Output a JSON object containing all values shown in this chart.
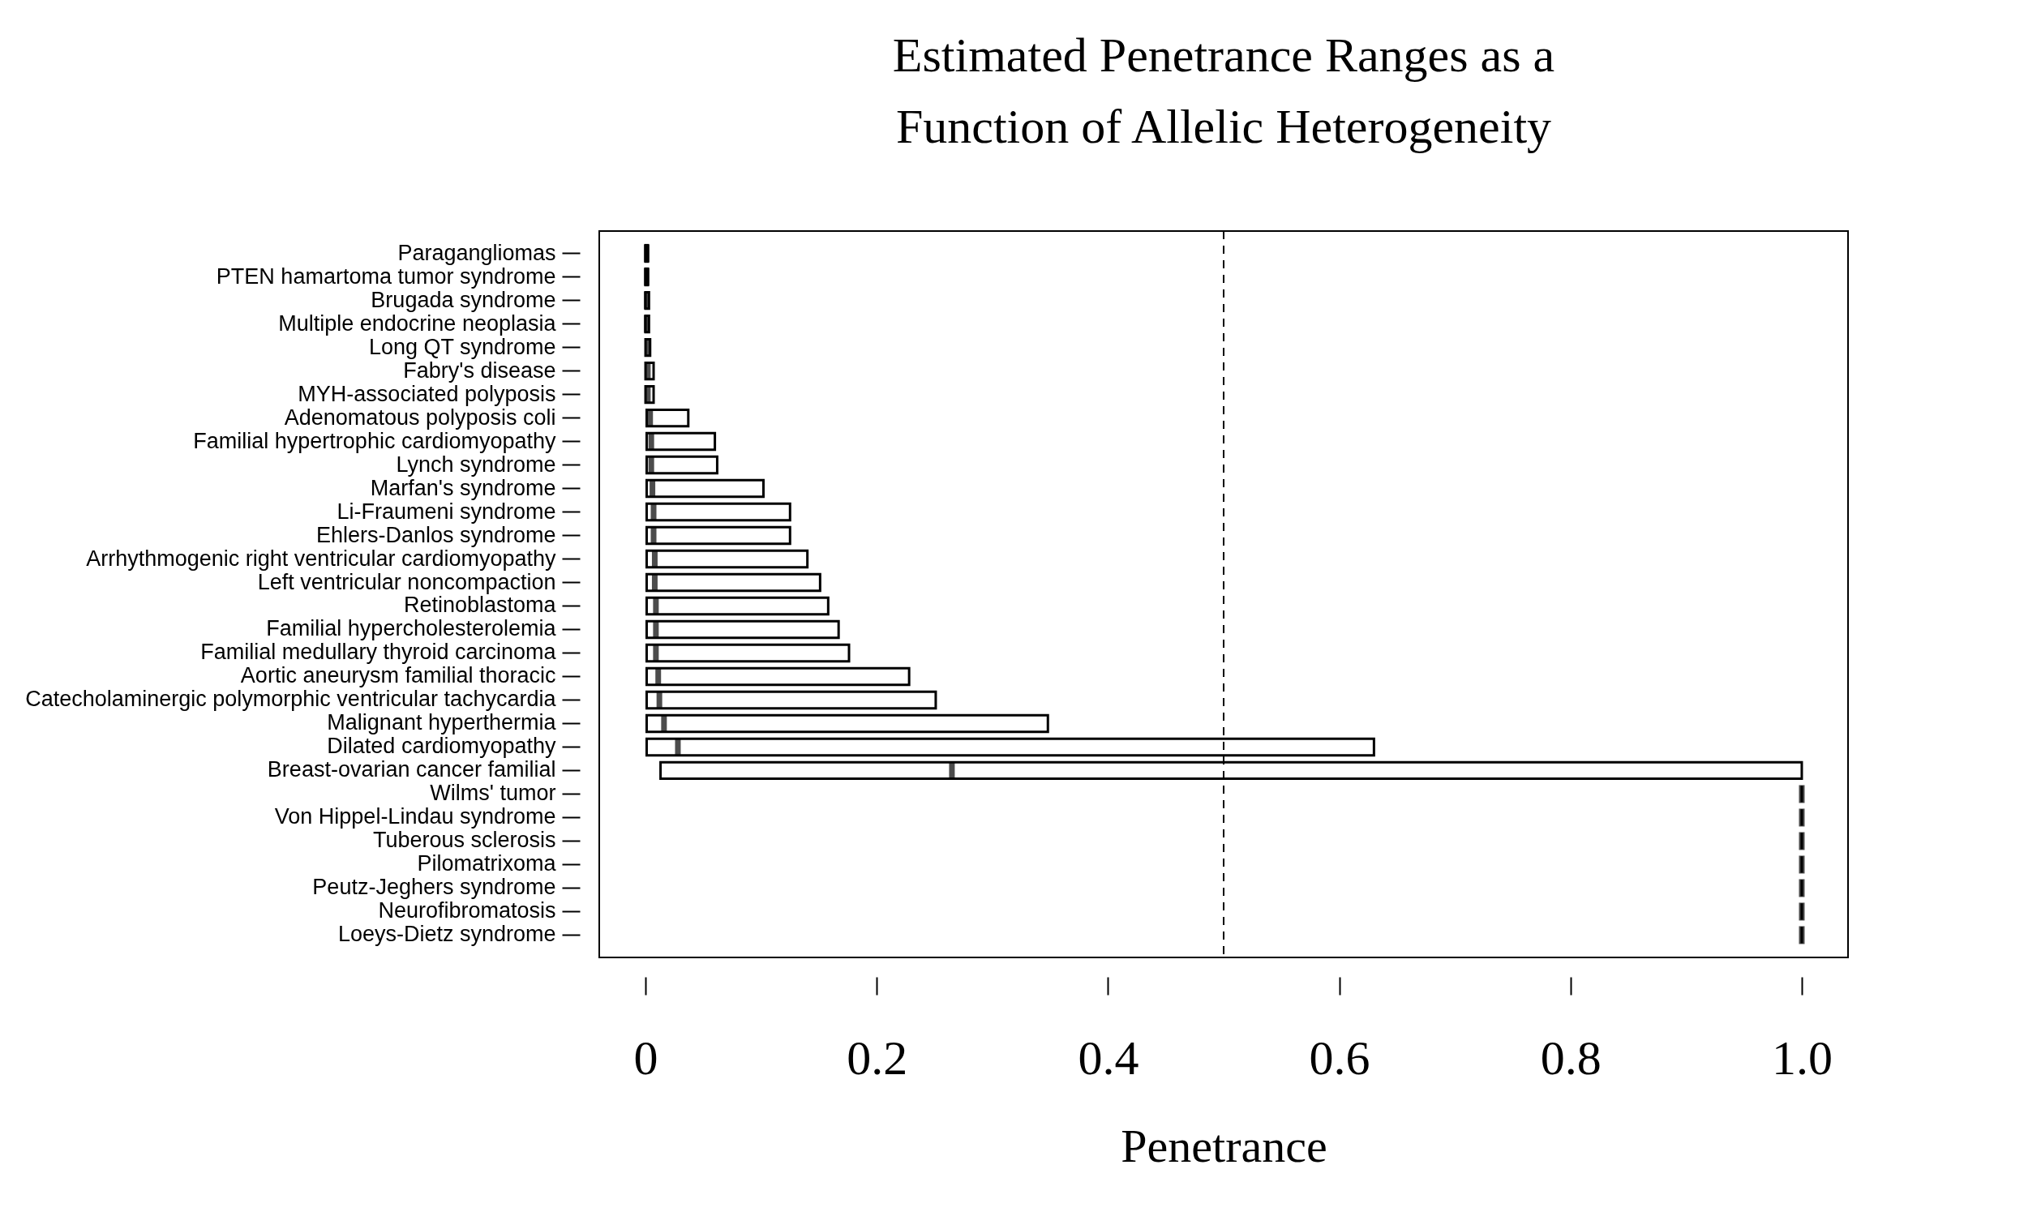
{
  "chart_data": {
    "type": "box",
    "orientation": "horizontal",
    "title": "Estimated Penetrance Ranges as a Function of Allelic Heterogeneity",
    "xlabel": "Penetrance",
    "categories": [
      "Paragangliomas",
      "PTEN hamartoma tumor syndrome",
      "Brugada syndrome",
      "Multiple endocrine neoplasia",
      "Long QT syndrome",
      "Fabry's disease",
      "MYH-associated polyposis",
      "Adenomatous polyposis coli",
      "Familial hypertrophic cardiomyopathy",
      "Lynch syndrome",
      "Marfan's syndrome",
      "Li-Fraumeni syndrome",
      "Ehlers-Danlos syndrome",
      "Arrhythmogenic right ventricular cardiomyopathy",
      "Left ventricular noncompaction",
      "Retinoblastoma",
      "Familial hypercholesterolemia",
      "Familial medullary thyroid carcinoma",
      "Aortic aneurysm familial thoracic",
      "Catecholaminergic polymorphic ventricular tachycardia",
      "Malignant hyperthermia",
      "Dilated cardiomyopathy",
      "Breast-ovarian cancer familial",
      "Wilms' tumor",
      "Von Hippel-Lindau syndrome",
      "Tuberous sclerosis",
      "Pilomatrixoma",
      "Peutz-Jeghers syndrome",
      "Neurofibromatosis",
      "Loeys-Dietz syndrome"
    ],
    "boxes": [
      {
        "low": 0,
        "q1": 0,
        "median": 0.001,
        "q3": 0.002,
        "high": 0.002
      },
      {
        "low": 0,
        "q1": 0,
        "median": 0.001,
        "q3": 0.002,
        "high": 0.002
      },
      {
        "low": 0,
        "q1": 0,
        "median": 0.001,
        "q3": 0.003,
        "high": 0.003
      },
      {
        "low": 0,
        "q1": 0,
        "median": 0.001,
        "q3": 0.003,
        "high": 0.003
      },
      {
        "low": 0,
        "q1": 0,
        "median": 0.002,
        "q3": 0.004,
        "high": 0.004
      },
      {
        "low": 0,
        "q1": 0,
        "median": 0.002,
        "q3": 0.007,
        "high": 0.007
      },
      {
        "low": 0,
        "q1": 0,
        "median": 0.002,
        "q3": 0.007,
        "high": 0.007
      },
      {
        "low": 0.001,
        "q1": 0.001,
        "median": 0.004,
        "q3": 0.037,
        "high": 0.037
      },
      {
        "low": 0.001,
        "q1": 0.001,
        "median": 0.005,
        "q3": 0.06,
        "high": 0.06
      },
      {
        "low": 0.001,
        "q1": 0.001,
        "median": 0.005,
        "q3": 0.062,
        "high": 0.062
      },
      {
        "low": 0.001,
        "q1": 0.001,
        "median": 0.006,
        "q3": 0.102,
        "high": 0.102
      },
      {
        "low": 0.001,
        "q1": 0.001,
        "median": 0.007,
        "q3": 0.125,
        "high": 0.125
      },
      {
        "low": 0.001,
        "q1": 0.001,
        "median": 0.007,
        "q3": 0.125,
        "high": 0.125
      },
      {
        "low": 0.001,
        "q1": 0.001,
        "median": 0.008,
        "q3": 0.14,
        "high": 0.14
      },
      {
        "low": 0.001,
        "q1": 0.001,
        "median": 0.008,
        "q3": 0.151,
        "high": 0.151
      },
      {
        "low": 0.001,
        "q1": 0.001,
        "median": 0.009,
        "q3": 0.158,
        "high": 0.158
      },
      {
        "low": 0.001,
        "q1": 0.001,
        "median": 0.009,
        "q3": 0.167,
        "high": 0.167
      },
      {
        "low": 0.001,
        "q1": 0.001,
        "median": 0.009,
        "q3": 0.176,
        "high": 0.176
      },
      {
        "low": 0.001,
        "q1": 0.001,
        "median": 0.011,
        "q3": 0.228,
        "high": 0.228
      },
      {
        "low": 0.001,
        "q1": 0.001,
        "median": 0.012,
        "q3": 0.251,
        "high": 0.251
      },
      {
        "low": 0.001,
        "q1": 0.001,
        "median": 0.016,
        "q3": 0.348,
        "high": 0.348
      },
      {
        "low": 0.001,
        "q1": 0.001,
        "median": 0.028,
        "q3": 0.63,
        "high": 0.63
      },
      {
        "low": 0.013,
        "q1": 0.013,
        "median": 0.265,
        "q3": 1,
        "high": 1
      },
      {
        "low": 1,
        "q1": 1,
        "median": 1,
        "q3": 1,
        "high": 1
      },
      {
        "low": 1,
        "q1": 1,
        "median": 1,
        "q3": 1,
        "high": 1
      },
      {
        "low": 1,
        "q1": 1,
        "median": 1,
        "q3": 1,
        "high": 1
      },
      {
        "low": 1,
        "q1": 1,
        "median": 1,
        "q3": 1,
        "high": 1
      },
      {
        "low": 1,
        "q1": 1,
        "median": 1,
        "q3": 1,
        "high": 1
      },
      {
        "low": 1,
        "q1": 1,
        "median": 1,
        "q3": 1,
        "high": 1
      },
      {
        "low": 1,
        "q1": 1,
        "median": 1,
        "q3": 1,
        "high": 1
      }
    ],
    "xlim": [
      -0.04,
      1.04
    ],
    "xticks": [
      0,
      0.2,
      0.4,
      0.6,
      0.8,
      {
        "value": 1,
        "label": "1.0"
      }
    ],
    "ref_lines": [
      {
        "axis": "x",
        "value": 0.5,
        "line_style": "dashed",
        "color": "#000000"
      }
    ]
  }
}
